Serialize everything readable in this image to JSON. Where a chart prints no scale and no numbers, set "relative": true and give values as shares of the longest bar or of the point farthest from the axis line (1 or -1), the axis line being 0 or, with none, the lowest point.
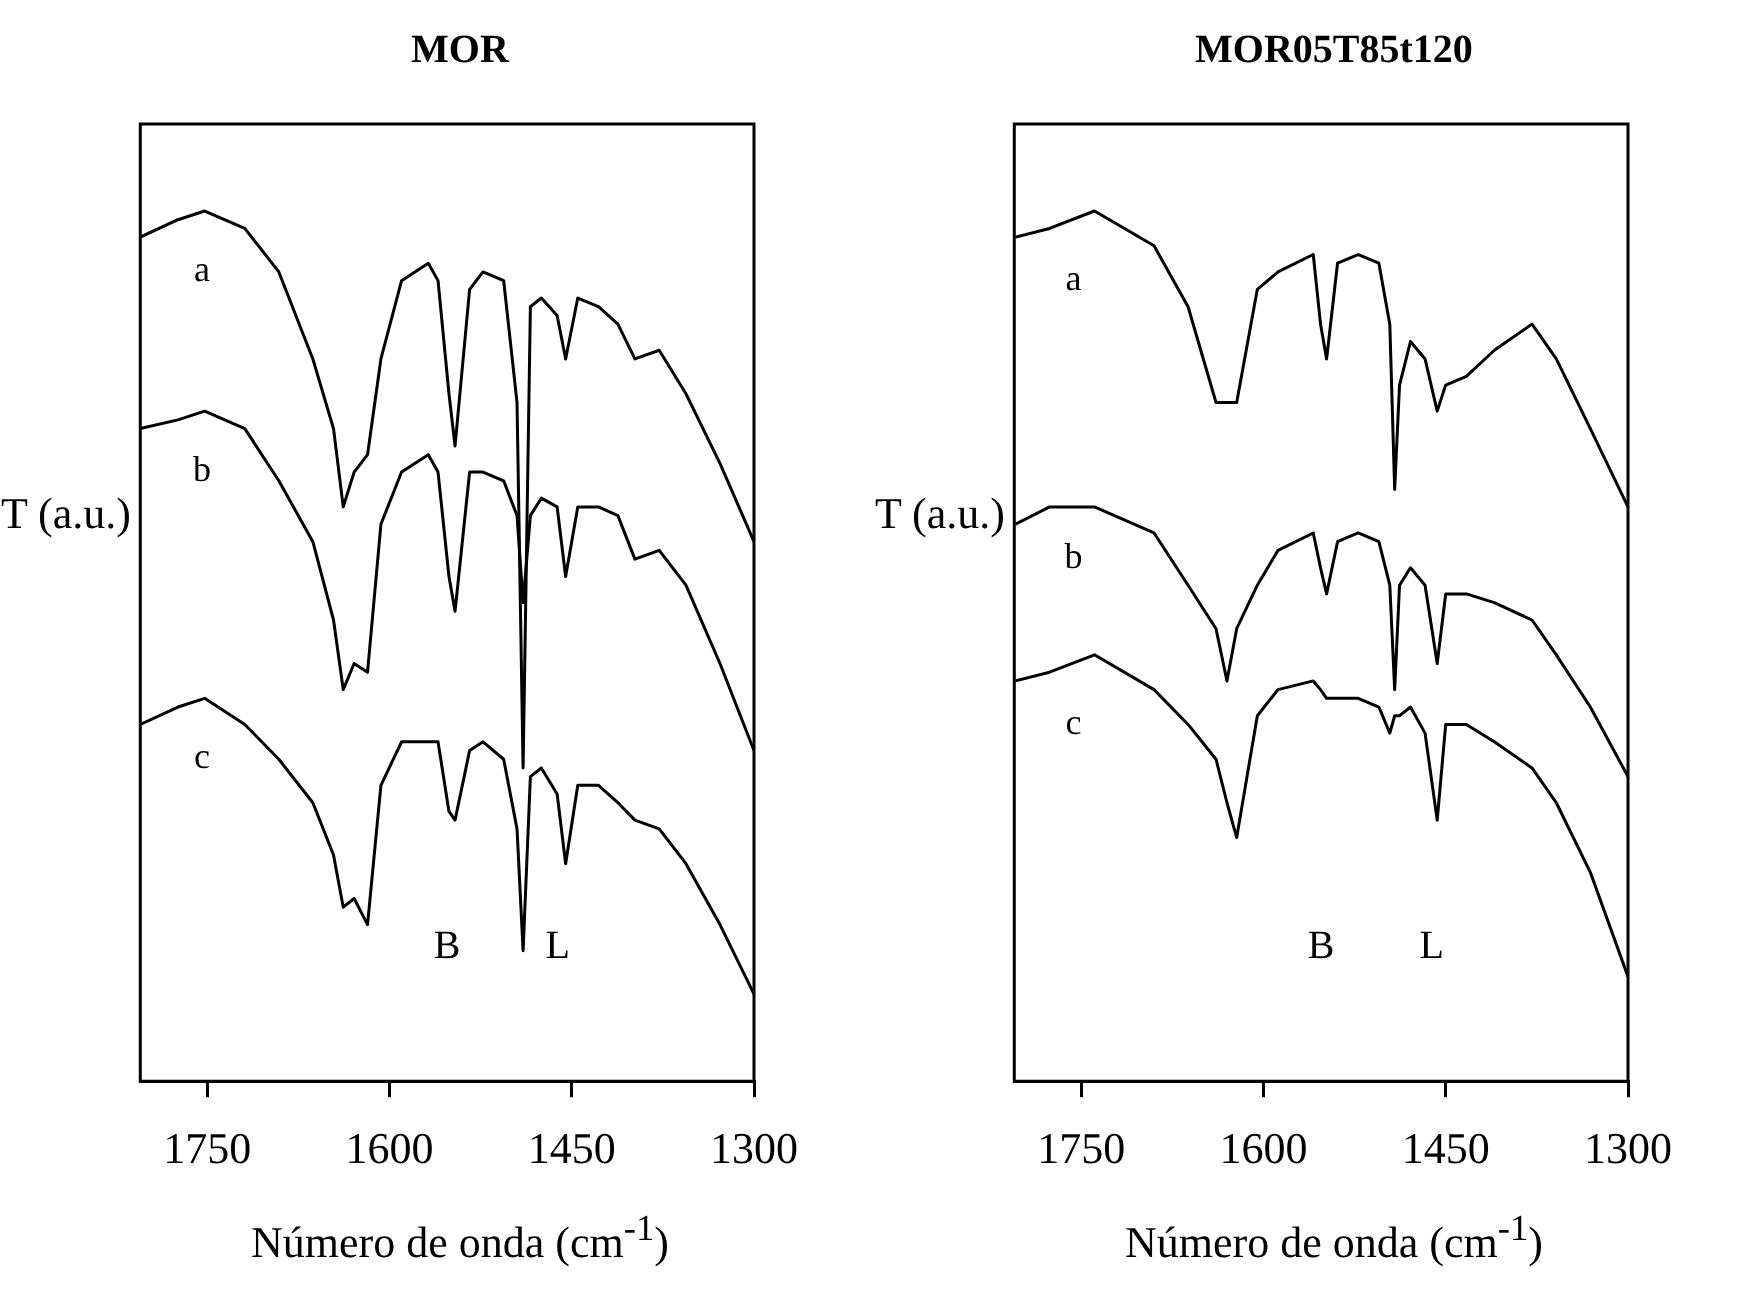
{
  "chart_data": [
    {
      "type": "line",
      "title": "MOR",
      "xlabel": "Número de onda (cm$^{-1}$)",
      "ylabel": "T (a.u.)",
      "relative": true,
      "grid": false,
      "legend": false,
      "marker": "none",
      "tick_labels": "x",
      "xlim": [
        1805,
        1300
      ],
      "xticks": [
        1750,
        1600,
        1450,
        1300
      ],
      "x": [
        1805,
        1774,
        1752,
        1719,
        1691,
        1663,
        1646,
        1638,
        1629,
        1618,
        1607,
        1590,
        1568,
        1560,
        1551,
        1546,
        1534,
        1523,
        1506,
        1495,
        1490,
        1484,
        1475,
        1462,
        1455,
        1445,
        1428,
        1412,
        1398,
        1378,
        1356,
        1328,
        1300
      ],
      "annotations": [
        "B",
        "L"
      ],
      "series": [
        {
          "name": "a",
          "color": "#000000",
          "values": [
            0.97,
            0.99,
            1.0,
            0.98,
            0.93,
            0.83,
            0.75,
            0.66,
            0.7,
            0.72,
            0.83,
            0.92,
            0.94,
            0.92,
            0.79,
            0.73,
            0.91,
            0.93,
            0.92,
            0.78,
            0.36,
            0.89,
            0.9,
            0.88,
            0.83,
            0.9,
            0.89,
            0.87,
            0.83,
            0.84,
            0.79,
            0.71,
            0.62
          ]
        },
        {
          "name": "b",
          "color": "#000000",
          "values": [
            0.75,
            0.76,
            0.77,
            0.75,
            0.69,
            0.62,
            0.53,
            0.45,
            0.48,
            0.47,
            0.64,
            0.7,
            0.72,
            0.7,
            0.58,
            0.54,
            0.7,
            0.7,
            0.69,
            0.65,
            0.55,
            0.65,
            0.67,
            0.66,
            0.58,
            0.66,
            0.66,
            0.65,
            0.6,
            0.61,
            0.57,
            0.48,
            0.38
          ]
        },
        {
          "name": "c",
          "color": "#000000",
          "values": [
            0.41,
            0.43,
            0.44,
            0.41,
            0.37,
            0.32,
            0.26,
            0.2,
            0.21,
            0.18,
            0.34,
            0.39,
            0.39,
            0.39,
            0.31,
            0.3,
            0.38,
            0.39,
            0.37,
            0.29,
            0.15,
            0.35,
            0.36,
            0.33,
            0.25,
            0.34,
            0.34,
            0.32,
            0.3,
            0.29,
            0.25,
            0.18,
            0.1
          ]
        }
      ]
    },
    {
      "type": "line",
      "title": "MOR05T85t120",
      "xlabel": "Número de onda (cm$^{-1}$)",
      "ylabel": "T (a.u.)",
      "relative": true,
      "grid": false,
      "legend": false,
      "marker": "none",
      "tick_labels": "x",
      "xlim": [
        1805,
        1300
      ],
      "xticks": [
        1750,
        1600,
        1450,
        1300
      ],
      "x": [
        1804,
        1776,
        1739,
        1690,
        1662,
        1639,
        1630,
        1622,
        1605,
        1588,
        1559,
        1553,
        1548,
        1539,
        1522,
        1505,
        1496,
        1492,
        1488,
        1479,
        1467,
        1457,
        1450,
        1433,
        1410,
        1379,
        1359,
        1331,
        1300
      ],
      "annotations": [
        "B",
        "L"
      ],
      "series": [
        {
          "name": "a",
          "color": "#000000",
          "values": [
            0.97,
            0.98,
            1.0,
            0.96,
            0.89,
            0.78,
            0.78,
            0.78,
            0.91,
            0.93,
            0.95,
            0.87,
            0.83,
            0.94,
            0.95,
            0.94,
            0.87,
            0.68,
            0.8,
            0.85,
            0.83,
            0.77,
            0.8,
            0.81,
            0.84,
            0.87,
            0.83,
            0.75,
            0.66
          ]
        },
        {
          "name": "b",
          "color": "#000000",
          "values": [
            0.64,
            0.66,
            0.66,
            0.63,
            0.57,
            0.52,
            0.46,
            0.52,
            0.57,
            0.61,
            0.63,
            0.59,
            0.56,
            0.62,
            0.63,
            0.62,
            0.57,
            0.45,
            0.57,
            0.59,
            0.57,
            0.48,
            0.56,
            0.56,
            0.55,
            0.53,
            0.49,
            0.43,
            0.35
          ]
        },
        {
          "name": "c",
          "color": "#000000",
          "values": [
            0.46,
            0.47,
            0.49,
            0.45,
            0.41,
            0.37,
            0.32,
            0.28,
            0.42,
            0.45,
            0.46,
            0.45,
            0.44,
            0.44,
            0.44,
            0.43,
            0.4,
            0.42,
            0.42,
            0.43,
            0.4,
            0.3,
            0.41,
            0.41,
            0.39,
            0.36,
            0.32,
            0.24,
            0.12
          ]
        }
      ]
    }
  ]
}
